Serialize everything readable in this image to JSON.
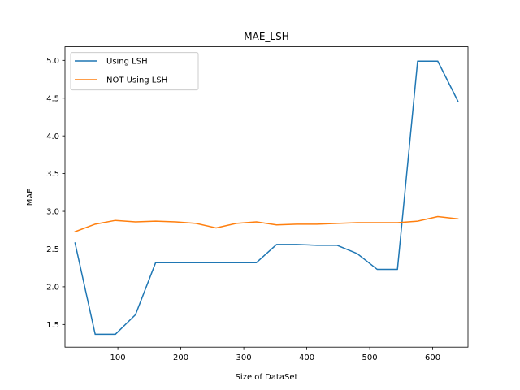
{
  "chart_data": {
    "type": "line",
    "title": "MAE_LSH",
    "xlabel": "Size of DataSet",
    "ylabel": "MAE",
    "xlim": [
      16,
      656
    ],
    "ylim": [
      1.2,
      5.18
    ],
    "xticks": [
      100,
      200,
      300,
      400,
      500,
      600
    ],
    "xtick_labels": [
      "100",
      "200",
      "300",
      "400",
      "500",
      "600"
    ],
    "yticks": [
      1.5,
      2.0,
      2.5,
      3.0,
      3.5,
      4.0,
      4.5,
      5.0
    ],
    "ytick_labels": [
      "1.5",
      "2.0",
      "2.5",
      "3.0",
      "3.5",
      "4.0",
      "4.5",
      "5.0"
    ],
    "grid": false,
    "legend_position": "upper-left",
    "x": [
      32,
      64,
      96,
      128,
      160,
      192,
      224,
      256,
      288,
      320,
      352,
      384,
      416,
      448,
      480,
      512,
      544,
      576,
      608,
      640
    ],
    "series": [
      {
        "name": "Using LSH",
        "color": "#1f77b4",
        "values": [
          2.58,
          1.37,
          1.37,
          1.63,
          2.32,
          2.32,
          2.32,
          2.32,
          2.32,
          2.32,
          2.56,
          2.56,
          2.55,
          2.55,
          2.44,
          2.23,
          2.23,
          4.99,
          4.99,
          4.46
        ]
      },
      {
        "name": "NOT Using LSH",
        "color": "#ff7f0e",
        "values": [
          2.73,
          2.83,
          2.88,
          2.86,
          2.87,
          2.86,
          2.84,
          2.78,
          2.84,
          2.86,
          2.82,
          2.83,
          2.83,
          2.84,
          2.85,
          2.85,
          2.85,
          2.87,
          2.93,
          2.9
        ]
      }
    ]
  }
}
